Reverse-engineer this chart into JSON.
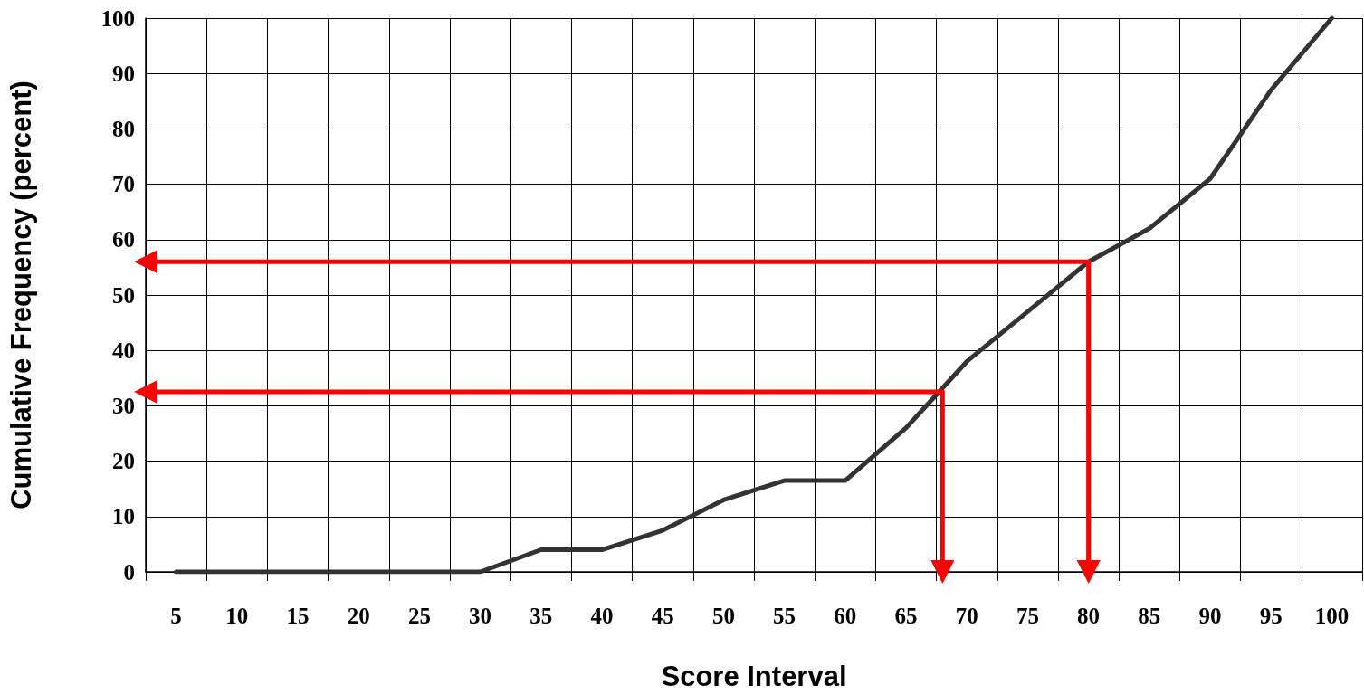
{
  "chart_data": {
    "type": "line",
    "xlabel": "Score Interval",
    "ylabel": "Cumulative Frequency (percent)",
    "x": [
      5,
      10,
      15,
      20,
      25,
      30,
      35,
      40,
      45,
      50,
      55,
      60,
      65,
      70,
      75,
      80,
      85,
      90,
      95,
      100
    ],
    "series": [
      {
        "color": "#333333",
        "marker": "none",
        "values": [
          0,
          0,
          0,
          0,
          0,
          0,
          4,
          4,
          7.5,
          13,
          16.5,
          16.5,
          26,
          38,
          47,
          56,
          62,
          71,
          87,
          100
        ]
      },
      {
        "color": "#ff0000",
        "marker": "triangle",
        "x": [
          2.5,
          68,
          68
        ],
        "values": [
          32.5,
          32.5,
          0
        ]
      },
      {
        "color": "#ff0000",
        "marker": "triangle",
        "x": [
          2.5,
          80,
          80
        ],
        "values": [
          56,
          56,
          0
        ]
      }
    ],
    "xlim": [
      2.5,
      102.5
    ],
    "xticks": [
      {
        "value": 2.5,
        "label": null
      },
      5,
      {
        "value": 7.5,
        "label": null
      },
      10,
      {
        "value": 12.5,
        "label": null
      },
      15,
      {
        "value": 17.5,
        "label": null
      },
      20,
      {
        "value": 22.5,
        "label": null
      },
      25,
      {
        "value": 27.5,
        "label": null
      },
      30,
      {
        "value": 32.5,
        "label": null
      },
      35,
      {
        "value": 37.5,
        "label": null
      },
      40,
      {
        "value": 42.5,
        "label": null
      },
      45,
      {
        "value": 47.5,
        "label": null
      },
      50,
      {
        "value": 52.5,
        "label": null
      },
      55,
      {
        "value": 57.5,
        "label": null
      },
      60,
      {
        "value": 62.5,
        "label": null
      },
      65,
      {
        "value": 67.5,
        "label": null
      },
      70,
      {
        "value": 72.5,
        "label": null
      },
      75,
      {
        "value": 77.5,
        "label": null
      },
      80,
      {
        "value": 82.5,
        "label": null
      },
      85,
      {
        "value": 87.5,
        "label": null
      },
      90,
      {
        "value": 92.5,
        "label": null
      },
      95,
      {
        "value": 97.5,
        "label": null
      },
      100,
      {
        "value": 102.5,
        "label": null
      }
    ],
    "ylim": [
      0,
      100
    ],
    "yticks": [
      0,
      10,
      20,
      30,
      40,
      50,
      60,
      70,
      80,
      90,
      100
    ],
    "grid": true
  }
}
